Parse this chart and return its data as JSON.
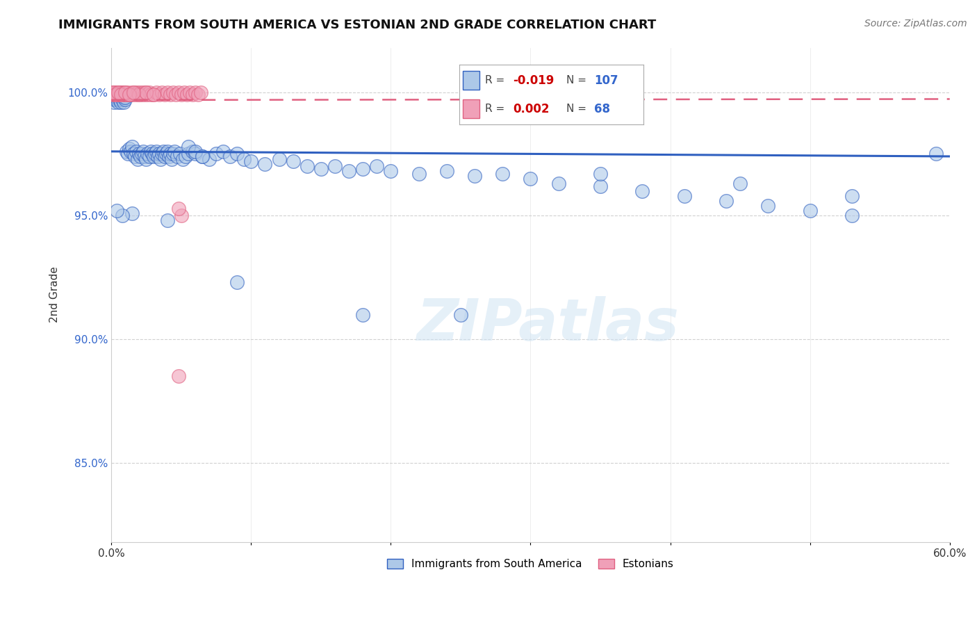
{
  "title": "IMMIGRANTS FROM SOUTH AMERICA VS ESTONIAN 2ND GRADE CORRELATION CHART",
  "source": "Source: ZipAtlas.com",
  "ylabel": "2nd Grade",
  "xlim": [
    0.0,
    0.6
  ],
  "ylim": [
    0.818,
    1.018
  ],
  "yticks": [
    0.85,
    0.9,
    0.95,
    1.0
  ],
  "ytick_labels": [
    "85.0%",
    "90.0%",
    "95.0%",
    "100.0%"
  ],
  "xticks": [
    0.0,
    0.1,
    0.2,
    0.3,
    0.4,
    0.5,
    0.6
  ],
  "xtick_labels": [
    "0.0%",
    "",
    "",
    "",
    "",
    "",
    "60.0%"
  ],
  "blue_R": -0.019,
  "blue_N": 107,
  "pink_R": 0.002,
  "pink_N": 68,
  "blue_color": "#adc8e8",
  "pink_color": "#f0a0b8",
  "blue_line_color": "#3060c0",
  "pink_line_color": "#e06080",
  "blue_trend_y": 0.975,
  "pink_trend_y": 0.997,
  "legend_blue_label": "Immigrants from South America",
  "legend_pink_label": "Estonians",
  "watermark": "ZIPatlas",
  "blue_scatter_x": [
    0.001,
    0.001,
    0.002,
    0.002,
    0.003,
    0.003,
    0.004,
    0.004,
    0.005,
    0.005,
    0.006,
    0.006,
    0.007,
    0.007,
    0.008,
    0.008,
    0.009,
    0.009,
    0.01,
    0.01,
    0.011,
    0.012,
    0.013,
    0.014,
    0.015,
    0.016,
    0.017,
    0.018,
    0.019,
    0.02,
    0.021,
    0.022,
    0.023,
    0.024,
    0.025,
    0.026,
    0.027,
    0.028,
    0.029,
    0.03,
    0.031,
    0.032,
    0.033,
    0.034,
    0.035,
    0.036,
    0.037,
    0.038,
    0.039,
    0.04,
    0.041,
    0.042,
    0.043,
    0.044,
    0.045,
    0.047,
    0.049,
    0.051,
    0.053,
    0.055,
    0.058,
    0.06,
    0.065,
    0.07,
    0.075,
    0.08,
    0.085,
    0.09,
    0.095,
    0.1,
    0.11,
    0.12,
    0.13,
    0.14,
    0.15,
    0.16,
    0.17,
    0.18,
    0.19,
    0.2,
    0.22,
    0.24,
    0.26,
    0.28,
    0.3,
    0.32,
    0.35,
    0.38,
    0.41,
    0.44,
    0.47,
    0.5,
    0.53,
    0.055,
    0.06,
    0.065,
    0.35,
    0.45,
    0.53,
    0.59,
    0.18,
    0.25,
    0.09,
    0.04,
    0.015,
    0.008,
    0.004
  ],
  "blue_scatter_y": [
    0.998,
    0.997,
    0.999,
    0.996,
    0.998,
    0.997,
    0.999,
    0.998,
    0.997,
    0.996,
    0.998,
    0.997,
    0.999,
    0.996,
    0.998,
    0.997,
    0.996,
    0.998,
    0.997,
    0.998,
    0.976,
    0.975,
    0.977,
    0.976,
    0.978,
    0.975,
    0.974,
    0.976,
    0.973,
    0.975,
    0.974,
    0.975,
    0.976,
    0.974,
    0.973,
    0.975,
    0.974,
    0.976,
    0.975,
    0.974,
    0.975,
    0.976,
    0.974,
    0.975,
    0.973,
    0.975,
    0.976,
    0.974,
    0.975,
    0.976,
    0.974,
    0.975,
    0.973,
    0.975,
    0.976,
    0.974,
    0.975,
    0.973,
    0.974,
    0.975,
    0.976,
    0.975,
    0.974,
    0.973,
    0.975,
    0.976,
    0.974,
    0.975,
    0.973,
    0.972,
    0.971,
    0.973,
    0.972,
    0.97,
    0.969,
    0.97,
    0.968,
    0.969,
    0.97,
    0.968,
    0.967,
    0.968,
    0.966,
    0.967,
    0.965,
    0.963,
    0.962,
    0.96,
    0.958,
    0.956,
    0.954,
    0.952,
    0.95,
    0.978,
    0.976,
    0.974,
    0.967,
    0.963,
    0.958,
    0.975,
    0.91,
    0.91,
    0.923,
    0.948,
    0.951,
    0.95,
    0.952
  ],
  "pink_scatter_x": [
    0.001,
    0.001,
    0.002,
    0.002,
    0.003,
    0.003,
    0.004,
    0.004,
    0.005,
    0.005,
    0.006,
    0.006,
    0.007,
    0.007,
    0.008,
    0.008,
    0.009,
    0.009,
    0.01,
    0.01,
    0.011,
    0.012,
    0.013,
    0.014,
    0.015,
    0.016,
    0.017,
    0.018,
    0.019,
    0.02,
    0.021,
    0.022,
    0.023,
    0.024,
    0.025,
    0.026,
    0.027,
    0.028,
    0.03,
    0.032,
    0.034,
    0.036,
    0.038,
    0.04,
    0.042,
    0.044,
    0.046,
    0.048,
    0.05,
    0.052,
    0.054,
    0.056,
    0.058,
    0.06,
    0.062,
    0.064,
    0.02,
    0.025,
    0.03,
    0.001,
    0.003,
    0.005,
    0.007,
    0.01,
    0.013,
    0.016,
    0.05,
    0.048
  ],
  "pink_scatter_y": [
    0.999,
    1.0,
    0.999,
    1.0,
    0.999,
    1.0,
    0.999,
    1.0,
    0.999,
    1.0,
    0.999,
    1.0,
    0.999,
    1.0,
    0.999,
    1.0,
    0.999,
    1.0,
    0.999,
    1.0,
    0.999,
    1.0,
    0.999,
    0.999,
    1.0,
    0.999,
    1.0,
    0.999,
    1.0,
    0.999,
    1.0,
    0.999,
    1.0,
    0.999,
    1.0,
    0.999,
    1.0,
    0.999,
    0.999,
    1.0,
    0.999,
    1.0,
    0.999,
    1.0,
    0.999,
    1.0,
    0.999,
    1.0,
    0.999,
    1.0,
    0.999,
    1.0,
    0.999,
    1.0,
    0.999,
    1.0,
    0.999,
    1.0,
    0.999,
    1.0,
    0.999,
    1.0,
    0.999,
    1.0,
    0.999,
    1.0,
    0.95,
    0.953
  ]
}
